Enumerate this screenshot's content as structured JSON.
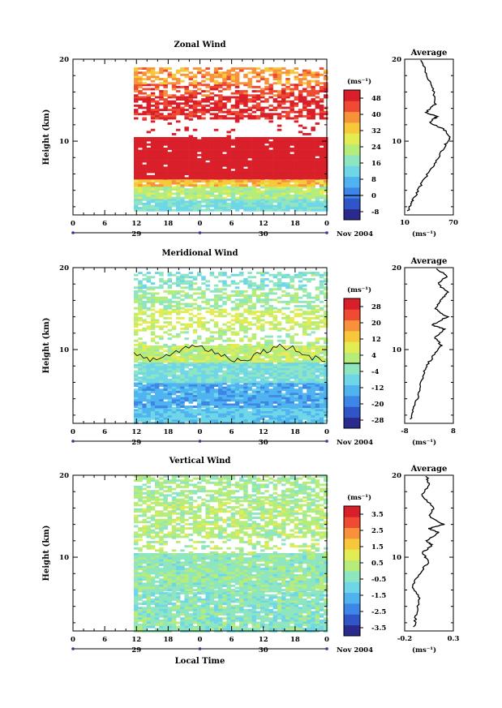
{
  "figure": {
    "month_label": "Nov 2004",
    "xlabel": "Local Time",
    "ylabel": "Height (km)",
    "unit_label": "(ms⁻¹)",
    "avg_unit_label": "(ms⁻¹)",
    "average_title": "Average",
    "time_ticks": [
      "0",
      "6",
      "12",
      "18",
      "0",
      "6",
      "12",
      "18",
      "0"
    ],
    "day_labels": [
      "29",
      "30"
    ],
    "height_ticks": [
      "10",
      "20"
    ]
  },
  "chart_data": [
    {
      "type": "heatmap",
      "title": "Zonal Wind",
      "xlabel": "",
      "ylabel": "Height (km)",
      "xlim": [
        0,
        48
      ],
      "ylim": [
        1,
        20
      ],
      "data_start_hour": 11.5,
      "colorbar": {
        "ticks": [
          "48",
          "40",
          "32",
          "24",
          "16",
          "8",
          "0",
          "-8"
        ],
        "vmin": -12,
        "vmax": 52,
        "zero_line": 0
      },
      "layers": [
        {
          "from": 1.5,
          "to": 3.0,
          "value": 14,
          "coverage": 0.95
        },
        {
          "from": 3.0,
          "to": 4.5,
          "value": 22,
          "coverage": 0.95
        },
        {
          "from": 4.5,
          "to": 5.5,
          "value": 34,
          "coverage": 0.95
        },
        {
          "from": 5.5,
          "to": 10.5,
          "value": 52,
          "coverage": 0.97
        },
        {
          "from": 10.5,
          "to": 12.8,
          "value": 52,
          "coverage": 0.08
        },
        {
          "from": 12.8,
          "to": 15.5,
          "value": 48,
          "coverage": 0.7
        },
        {
          "from": 15.5,
          "to": 17.0,
          "value": 44,
          "coverage": 0.55
        },
        {
          "from": 17.0,
          "to": 19.0,
          "value": 38,
          "coverage": 0.6
        }
      ],
      "average_profile": {
        "xlim": [
          10,
          70
        ],
        "xticks": [
          "10",
          "70"
        ],
        "points": [
          [
            14,
            1.5
          ],
          [
            18,
            2.5
          ],
          [
            24,
            3.5
          ],
          [
            32,
            5
          ],
          [
            42,
            6.5
          ],
          [
            52,
            8
          ],
          [
            60,
            9.5
          ],
          [
            66,
            10.5
          ],
          [
            58,
            11.5
          ],
          [
            40,
            12.3
          ],
          [
            50,
            13
          ],
          [
            36,
            13.5
          ],
          [
            48,
            14.5
          ],
          [
            46,
            16
          ],
          [
            40,
            17.5
          ],
          [
            34,
            19
          ],
          [
            30,
            20
          ]
        ]
      }
    },
    {
      "type": "heatmap",
      "title": "Meridional Wind",
      "xlabel": "",
      "ylabel": "Height (km)",
      "xlim": [
        0,
        48
      ],
      "ylim": [
        1,
        20
      ],
      "data_start_hour": 11.5,
      "colorbar": {
        "ticks": [
          "28",
          "20",
          "12",
          "4",
          "-4",
          "-12",
          "-20",
          "-28"
        ],
        "vmin": -32,
        "vmax": 32,
        "zero_line": 0
      },
      "layers": [
        {
          "from": 1.0,
          "to": 3.0,
          "value": -10,
          "coverage": 0.95
        },
        {
          "from": 3.0,
          "to": 6.0,
          "value": -14,
          "coverage": 0.95
        },
        {
          "from": 6.0,
          "to": 8.5,
          "value": -6,
          "coverage": 0.95
        },
        {
          "from": 8.5,
          "to": 10.5,
          "value": 4,
          "coverage": 0.95
        },
        {
          "from": 10.5,
          "to": 12.5,
          "value": 2,
          "coverage": 0.35
        },
        {
          "from": 12.5,
          "to": 15.0,
          "value": 6,
          "coverage": 0.55
        },
        {
          "from": 15.0,
          "to": 17.5,
          "value": 0,
          "coverage": 0.55
        },
        {
          "from": 17.5,
          "to": 19.5,
          "value": -4,
          "coverage": 0.5
        }
      ],
      "average_profile": {
        "xlim": [
          -8,
          8
        ],
        "xticks": [
          "-8",
          "8"
        ],
        "points": [
          [
            -6,
            1.5
          ],
          [
            -5,
            3
          ],
          [
            -3,
            5
          ],
          [
            -2,
            7
          ],
          [
            0,
            8.5
          ],
          [
            2,
            9.5
          ],
          [
            4,
            10.5
          ],
          [
            2,
            11.5
          ],
          [
            5,
            12.5
          ],
          [
            1,
            13
          ],
          [
            6,
            14
          ],
          [
            2,
            15
          ],
          [
            4,
            16
          ],
          [
            6,
            17
          ],
          [
            3,
            18
          ],
          [
            6,
            19
          ],
          [
            2,
            20
          ]
        ]
      }
    },
    {
      "type": "heatmap",
      "title": "Vertical Wind",
      "xlabel": "Local Time",
      "ylabel": "Height (km)",
      "xlim": [
        0,
        48
      ],
      "ylim": [
        1,
        20
      ],
      "data_start_hour": 11.5,
      "colorbar": {
        "ticks": [
          "3.5",
          "2.5",
          "1.5",
          "0.5",
          "-0.5",
          "-1.5",
          "-2.5",
          "-3.5"
        ],
        "vmin": -4,
        "vmax": 4,
        "zero_line": null
      },
      "layers": [
        {
          "from": 1.0,
          "to": 6.0,
          "value": -0.4,
          "coverage": 0.9
        },
        {
          "from": 6.0,
          "to": 10.5,
          "value": -0.2,
          "coverage": 0.95
        },
        {
          "from": 10.5,
          "to": 12.5,
          "value": 0.3,
          "coverage": 0.3
        },
        {
          "from": 12.5,
          "to": 17.0,
          "value": 0.3,
          "coverage": 0.7
        },
        {
          "from": 17.0,
          "to": 20.0,
          "value": 0.1,
          "coverage": 0.6
        }
      ],
      "average_profile": {
        "xlim": [
          -0.2,
          0.3
        ],
        "xticks": [
          "-0.2",
          "0.3"
        ],
        "points": [
          [
            -0.1,
            1.5
          ],
          [
            -0.08,
            3
          ],
          [
            -0.05,
            5
          ],
          [
            -0.12,
            6.5
          ],
          [
            -0.05,
            8
          ],
          [
            0.05,
            9.5
          ],
          [
            -0.02,
            10.5
          ],
          [
            0.08,
            11.5
          ],
          [
            0.02,
            12
          ],
          [
            0.15,
            13
          ],
          [
            0.05,
            13.5
          ],
          [
            0.2,
            14
          ],
          [
            0.05,
            15
          ],
          [
            0.1,
            16
          ],
          [
            -0.02,
            17.5
          ],
          [
            0.05,
            19
          ],
          [
            0.02,
            20
          ]
        ]
      }
    }
  ]
}
